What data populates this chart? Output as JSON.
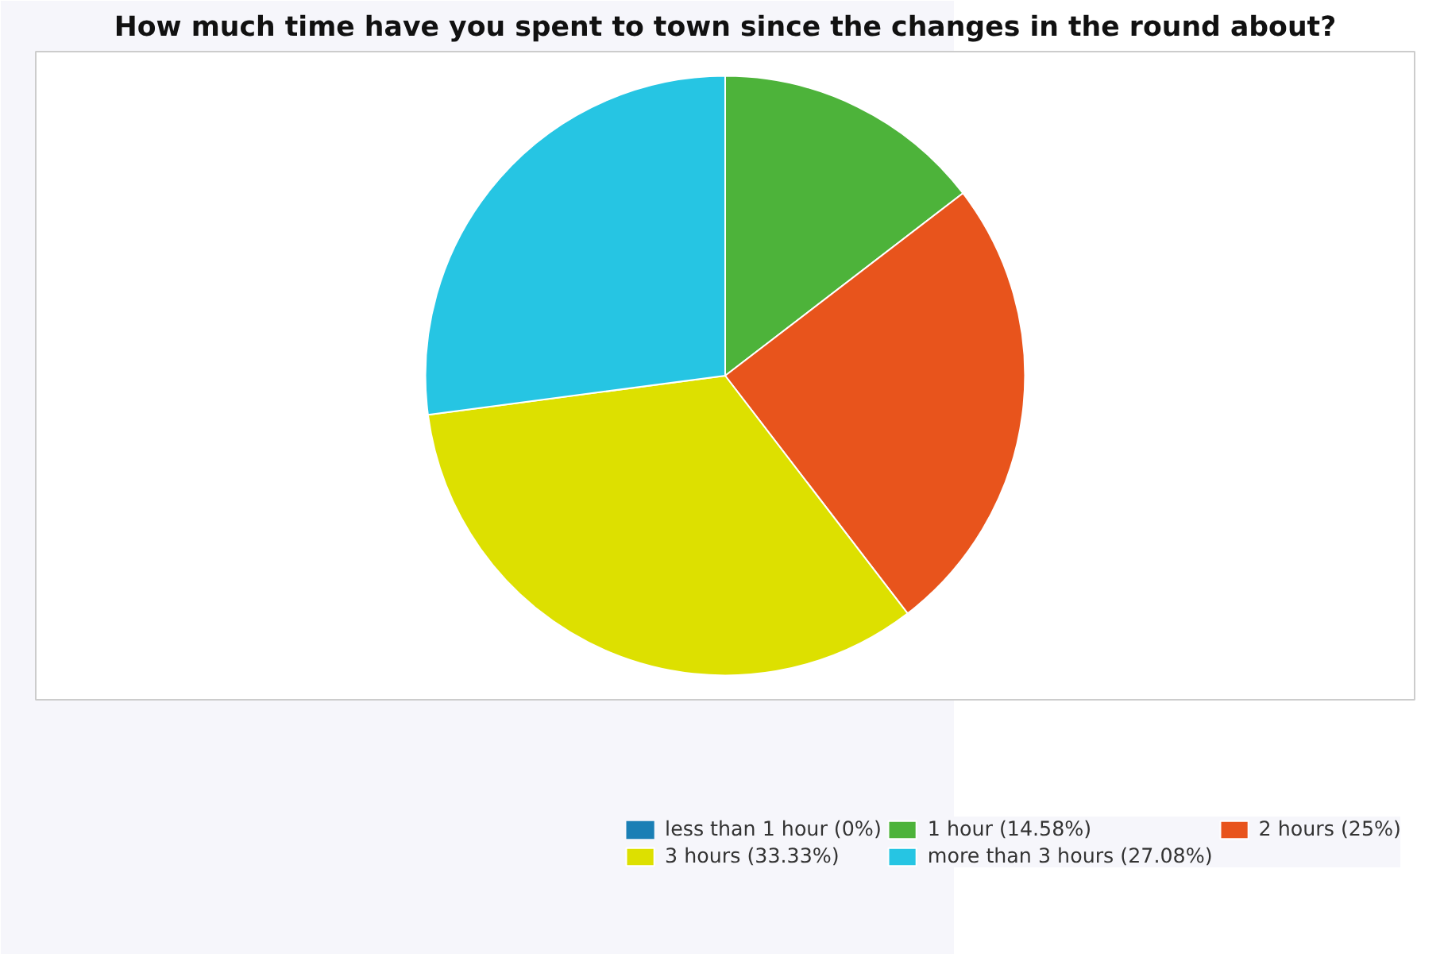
{
  "chart_data": {
    "type": "pie",
    "title": "How much time have you spent to town since the changes in the round about?",
    "categories": [
      "less than 1 hour (0%)",
      "1 hour (14.58%)",
      "2 hours (25%)",
      "3 hours (33.33%)",
      "more than 3 hours (27.08%)"
    ],
    "values": [
      0,
      14.58,
      25,
      33.33,
      27.08
    ],
    "colors": [
      "#1a7fb5",
      "#4db33a",
      "#e8541c",
      "#dde000",
      "#26c5e3"
    ],
    "legend": "bottom"
  }
}
